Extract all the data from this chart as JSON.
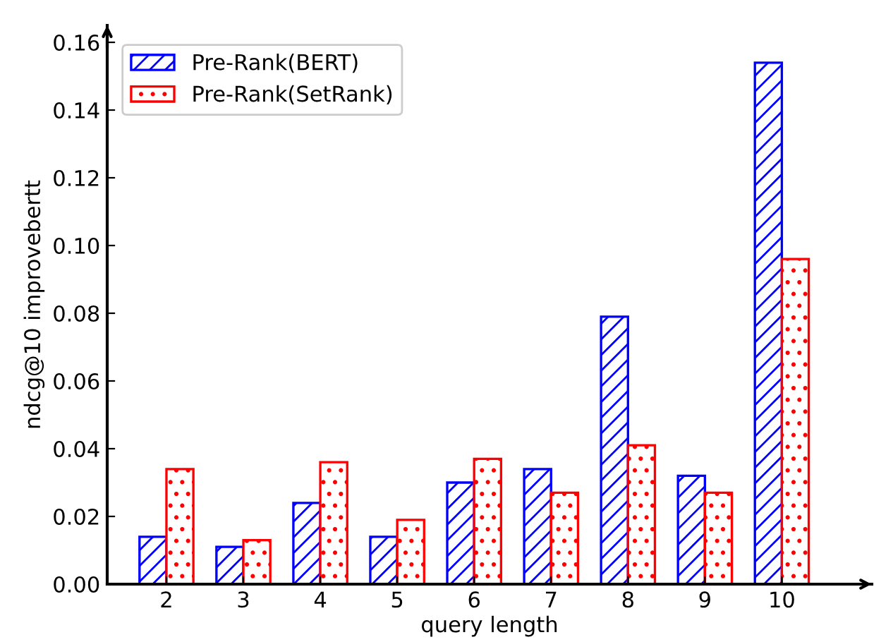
{
  "chart_data": {
    "type": "bar",
    "xlabel": "query length",
    "ylabel": "ndcg@10 improvebertt",
    "categories": [
      "2",
      "3",
      "4",
      "5",
      "6",
      "7",
      "8",
      "9",
      "10"
    ],
    "series": [
      {
        "name": "Pre-Rank(BERT)",
        "color": "#0000ff",
        "values": [
          0.014,
          0.011,
          0.024,
          0.014,
          0.03,
          0.034,
          0.079,
          0.032,
          0.154
        ]
      },
      {
        "name": "Pre-Rank(SetRank)",
        "color": "#ff0000",
        "values": [
          0.034,
          0.013,
          0.036,
          0.019,
          0.037,
          0.027,
          0.041,
          0.027,
          0.096
        ]
      }
    ],
    "ylim": [
      0,
      0.165
    ],
    "yticks": [
      {
        "value": 0,
        "label": "0.00"
      },
      {
        "value": 0.02,
        "label": "0.02"
      },
      {
        "value": 0.04,
        "label": "0.04"
      },
      {
        "value": 0.06,
        "label": "0.06"
      },
      {
        "value": 0.08,
        "label": "0.08"
      },
      {
        "value": 0.1,
        "label": "0.10"
      },
      {
        "value": 0.12,
        "label": "0.12"
      },
      {
        "value": 0.14,
        "label": "0.14"
      },
      {
        "value": 0.16,
        "label": "0.16"
      }
    ],
    "legend": "top left",
    "grid": false
  }
}
